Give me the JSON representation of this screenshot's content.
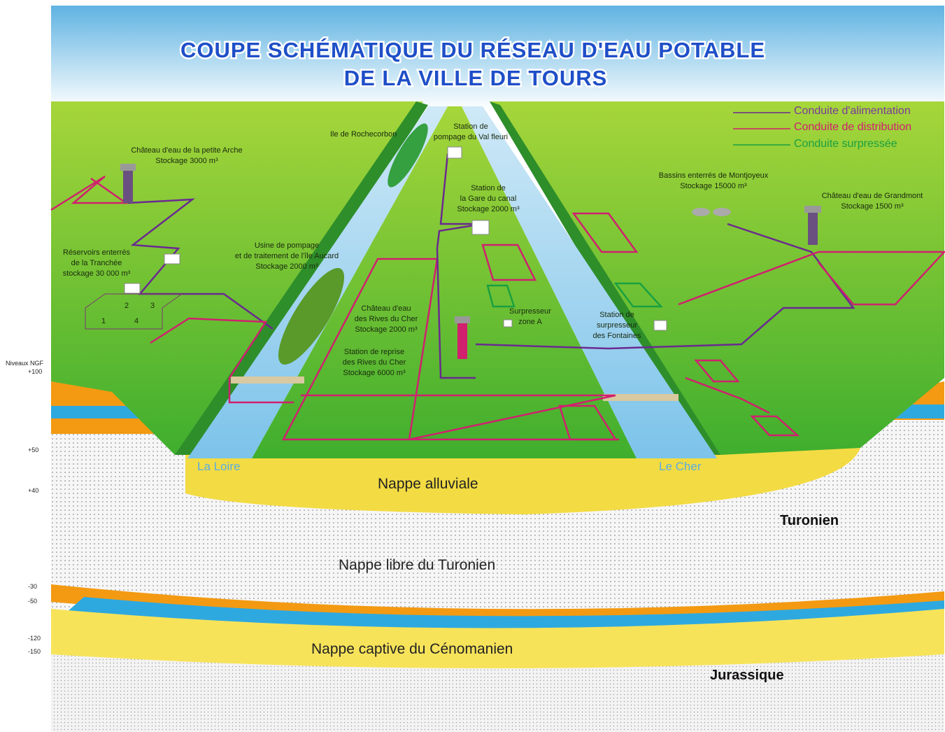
{
  "title": {
    "line1": "COUPE SCHÉMATIQUE DU RÉSEAU D'EAU POTABLE",
    "line2": "DE LA VILLE DE TOURS"
  },
  "legend": [
    "Conduite d'alimentation",
    "Conduite de distribution",
    "Conduite surpressée"
  ],
  "labels": {
    "rochecorbon": "Ile de Rochecorbon",
    "val_fleuri": [
      "Station de",
      "pompage du Val fleuri"
    ],
    "petite_arche": [
      "Château d'eau de la petite Arche",
      "Stockage 3000 m³"
    ],
    "gare_canal": [
      "Station de",
      "la Gare du canal",
      "Stockage 2000 m³"
    ],
    "montjoyeux": [
      "Bassins enterrés de Montjoyeux",
      "Stockage 15000 m³"
    ],
    "grandmont": [
      "Château d'eau de Grandmont",
      "Stockage 1500 m³"
    ],
    "tranchee": [
      "Réservoirs enterrés",
      "de la Tranchée",
      "stockage 30 000 m³"
    ],
    "aucard": [
      "Usine de pompage",
      "et de traitement de l'île Aucard",
      "Stockage 2000 m³"
    ],
    "rives_chateau": [
      "Château d'eau",
      "des Rives du Cher",
      "Stockage 2000 m³"
    ],
    "rives_reprise": [
      "Station de reprise",
      "des Rives du Cher",
      "Stockage 6000 m³"
    ],
    "surpresseur_a": [
      "Surpresseur",
      "zone A"
    ],
    "fontaines": [
      "Station de",
      "surpresseur",
      "des Fontaines"
    ]
  },
  "reservoir_numbers": [
    "1",
    "2",
    "3",
    "4"
  ],
  "rivers": {
    "loire": "La Loire",
    "cher": "Le Cher"
  },
  "layers": {
    "alluviale": "Nappe alluviale",
    "turonien": "Turonien",
    "libre": "Nappe libre du Turonien",
    "cenomanien": "Nappe captive du Cénomanien",
    "jurassique": "Jurassique"
  },
  "levels": {
    "title": "Niveaux NGF",
    "ticks": [
      "+100",
      "+50",
      "+40",
      "-30",
      "-50",
      "-120",
      "-150"
    ]
  }
}
